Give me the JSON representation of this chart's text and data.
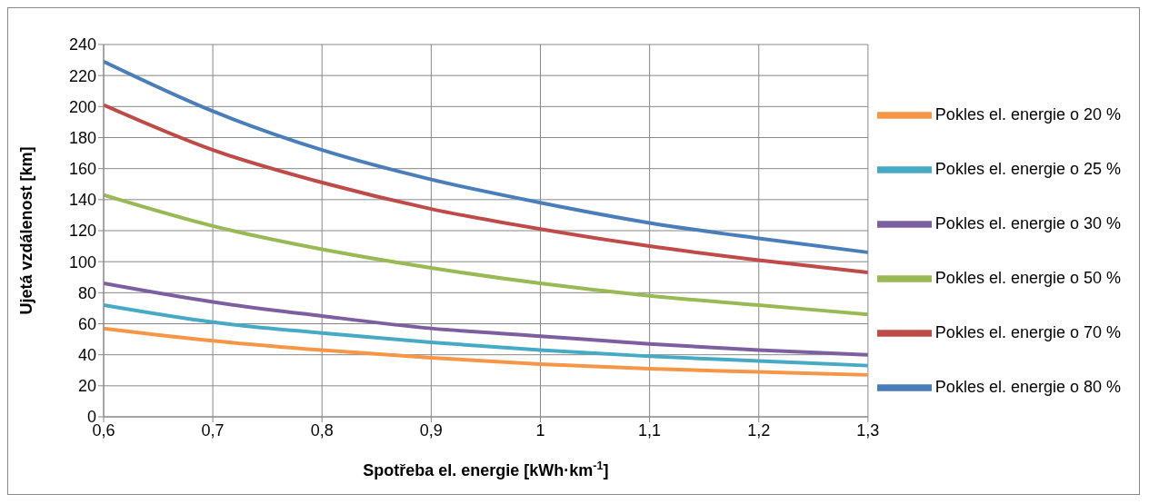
{
  "chart_data": {
    "type": "line",
    "xlabel": "Spotřeba el. energie [kWh·km$^{-1}$]",
    "ylabel": "Ujetá vzdálenost [km]",
    "x": [
      0.6,
      0.7,
      0.8,
      0.9,
      1.0,
      1.1,
      1.2,
      1.3
    ],
    "series": [
      {
        "name": "Pokles el. energie o 80 %",
        "color": "#4a7ebb",
        "values": [
          229,
          197,
          172,
          153,
          138,
          125,
          115,
          106
        ]
      },
      {
        "name": "Pokles el. energie o 70 %",
        "color": "#be4b48",
        "values": [
          201,
          172,
          151,
          134,
          121,
          110,
          101,
          93
        ]
      },
      {
        "name": "Pokles el. energie o 50 %",
        "color": "#98b954",
        "values": [
          143,
          123,
          108,
          96,
          86,
          78,
          72,
          66
        ]
      },
      {
        "name": "Pokles el. energie o 30 %",
        "color": "#7d5fa0",
        "values": [
          86,
          74,
          65,
          57,
          52,
          47,
          43,
          40
        ]
      },
      {
        "name": "Pokles el. energie o 25 %",
        "color": "#46aac5",
        "values": [
          72,
          61,
          54,
          48,
          43,
          39,
          36,
          33
        ]
      },
      {
        "name": "Pokles el. energie o 20 %",
        "color": "#f79646",
        "values": [
          57,
          49,
          43,
          38,
          34,
          31,
          29,
          27
        ]
      }
    ],
    "xlim": [
      0.6,
      1.3
    ],
    "xticks": [
      {
        "value": 0.6,
        "label": "0,6"
      },
      {
        "value": 0.7,
        "label": "0,7"
      },
      {
        "value": 0.8,
        "label": "0,8"
      },
      {
        "value": 0.9,
        "label": "0,9"
      },
      {
        "value": 1,
        "label": "1"
      },
      {
        "value": 1.1,
        "label": "1,1"
      },
      {
        "value": 1.2,
        "label": "1,2"
      },
      {
        "value": 1.3,
        "label": "1,3"
      }
    ],
    "ylim": [
      0,
      240
    ],
    "yticks": [
      0,
      20,
      40,
      60,
      80,
      100,
      120,
      140,
      160,
      180,
      200,
      220,
      240
    ],
    "grid": true,
    "legend": "right",
    "marker": "none",
    "line_style": "solid"
  }
}
